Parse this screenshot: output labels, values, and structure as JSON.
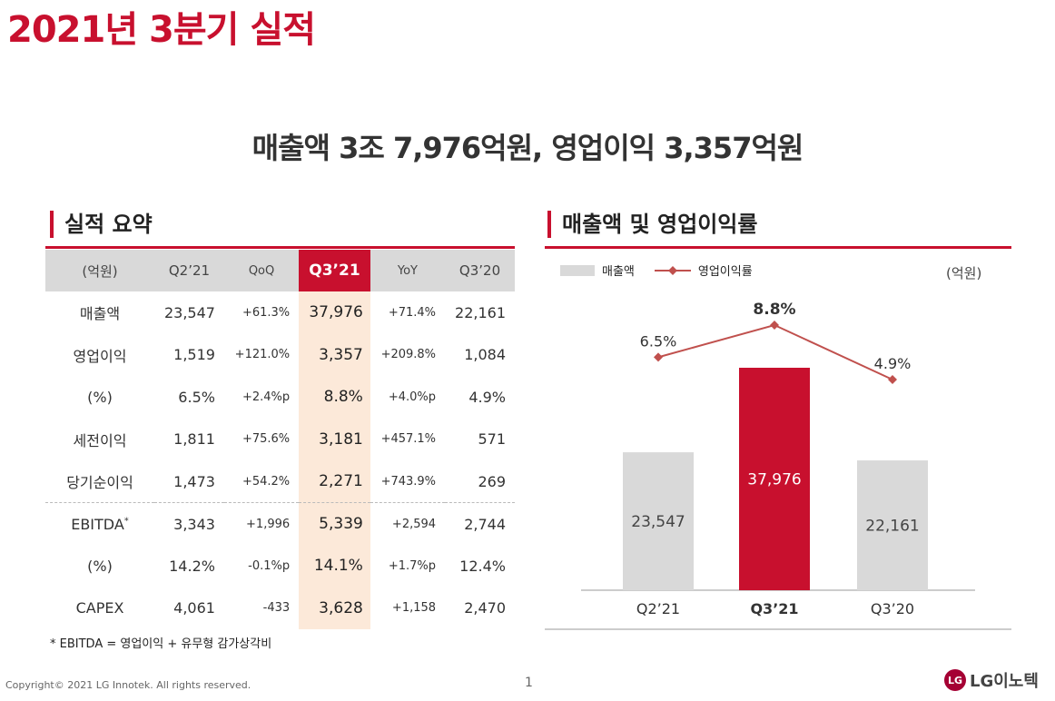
{
  "page": {
    "title": "2021년 3분기 실적",
    "headline": "매출액 3조 7,976억원, 영업이익 3,357억원",
    "copyright": "Copyright© 2021 LG Innotek. All rights reserved.",
    "page_number": "1",
    "logo_text": "LG이노텍",
    "logo_mark": "LG"
  },
  "summary": {
    "section_title": "실적 요약",
    "headers": [
      "(억원)",
      "Q2’21",
      "QoQ",
      "Q3’21",
      "YoY",
      "Q3’20"
    ],
    "rows": [
      {
        "label": "매출액",
        "q2": "23,547",
        "qoq": "+61.3%",
        "q3": "37,976",
        "yoy": "+71.4%",
        "q320": "22,161"
      },
      {
        "label": "영업이익",
        "q2": "1,519",
        "qoq": "+121.0%",
        "q3": "3,357",
        "yoy": "+209.8%",
        "q320": "1,084"
      },
      {
        "label": "(%)",
        "q2": "6.5%",
        "qoq": "+2.4%p",
        "q3": "8.8%",
        "yoy": "+4.0%p",
        "q320": "4.9%"
      },
      {
        "label": "세전이익",
        "q2": "1,811",
        "qoq": "+75.6%",
        "q3": "3,181",
        "yoy": "+457.1%",
        "q320": "571"
      },
      {
        "label": "당기순이익",
        "q2": "1,473",
        "qoq": "+54.2%",
        "q3": "2,271",
        "yoy": "+743.9%",
        "q320": "269"
      },
      {
        "label": "EBITDA",
        "sup": "*",
        "q2": "3,343",
        "qoq": "+1,996",
        "q3": "5,339",
        "yoy": "+2,594",
        "q320": "2,744"
      },
      {
        "label": "(%)",
        "q2": "14.2%",
        "qoq": "-0.1%p",
        "q3": "14.1%",
        "yoy": "+1.7%p",
        "q320": "12.4%"
      },
      {
        "label": "CAPEX",
        "q2": "4,061",
        "qoq": "-433",
        "q3": "3,628",
        "yoy": "+1,158",
        "q320": "2,470"
      }
    ],
    "footnote": "* EBITDA = 영업이익 + 유무형 감가상각비"
  },
  "chart_section": {
    "section_title": "매출액 및 영업이익률",
    "legend_bar": "매출액",
    "legend_line": "영업이익률",
    "unit": "(억원)"
  },
  "colors": {
    "accent": "#c8102e",
    "bar_gray": "#d9d9d9",
    "line": "#c0504d",
    "highlight_bg": "#fce9d9"
  },
  "chart_data": {
    "type": "bar",
    "categories": [
      "Q2’21",
      "Q3’21",
      "Q3’20"
    ],
    "series": [
      {
        "name": "매출액",
        "type": "bar",
        "values": [
          23547,
          37976,
          22161
        ],
        "labels": [
          "23,547",
          "37,976",
          "22,161"
        ]
      },
      {
        "name": "영업이익률",
        "type": "line",
        "values": [
          6.5,
          8.8,
          4.9
        ],
        "labels": [
          "6.5%",
          "8.8%",
          "4.9%"
        ]
      }
    ],
    "highlight_category": "Q3’21",
    "legend": "top-left"
  }
}
